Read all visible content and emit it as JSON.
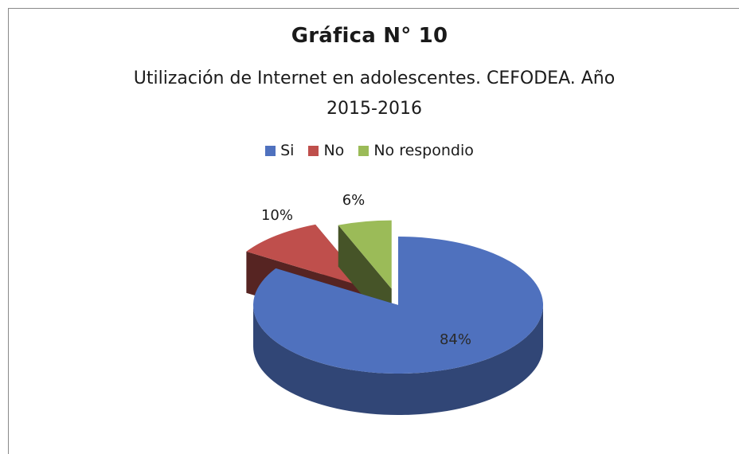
{
  "chart_data": {
    "type": "pie",
    "title": "Gráfica N° 10",
    "subtitle": "Utilización de Internet en adolescentes. CEFODEA. Año 2015-2016",
    "categories": [
      "Si",
      "No",
      "No respondio"
    ],
    "values": [
      84,
      10,
      6
    ],
    "data_labels": [
      "84%",
      "10%",
      "6%"
    ],
    "colors": [
      "#4f71be",
      "#bf4f4c",
      "#9bbb58"
    ],
    "legend_position": "top",
    "style": "3d-exploded"
  }
}
